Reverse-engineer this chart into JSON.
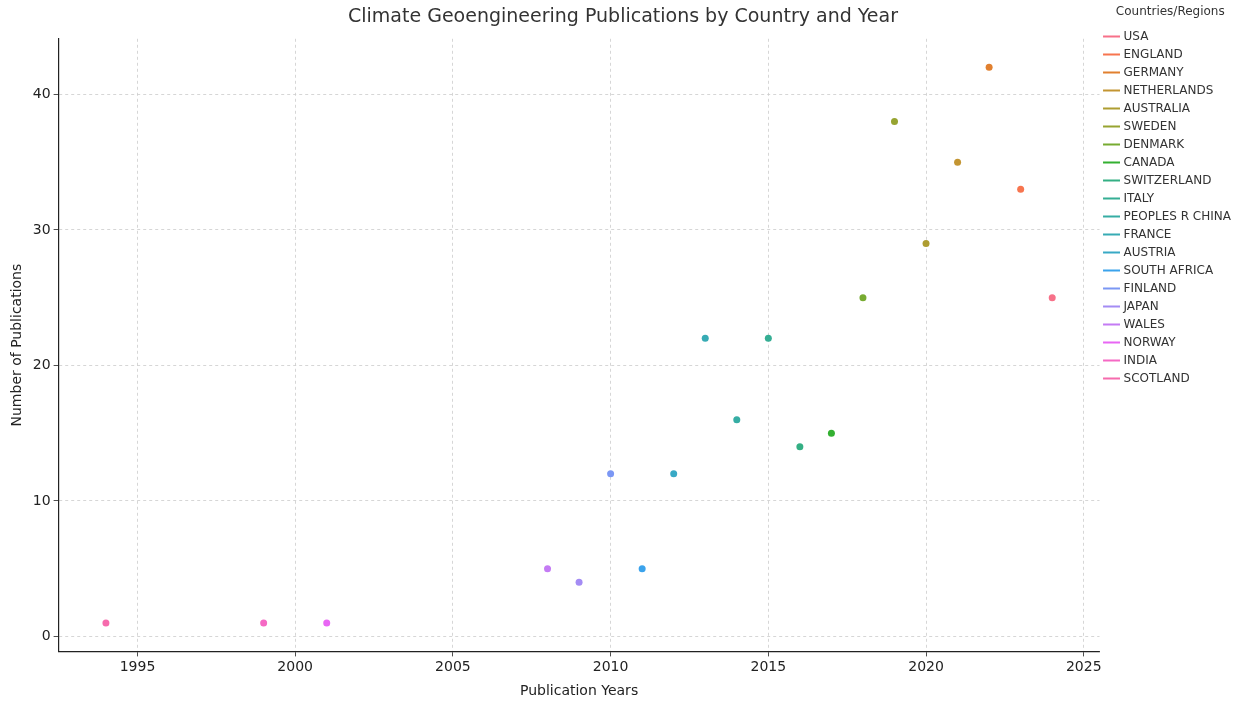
{
  "chart_data": {
    "type": "scatter",
    "title": "Climate Geoengineering Publications by Country and Year",
    "xlabel": "Publication Years",
    "ylabel": "Number of Publications",
    "legend_title": "Countries/Regions",
    "xlim": [
      1992.5,
      2025.5
    ],
    "xticks": [
      1995,
      2000,
      2005,
      2010,
      2015,
      2020,
      2025
    ],
    "ylim": [
      -1.1,
      44.1
    ],
    "yticks": [
      0,
      10,
      20,
      30,
      40
    ],
    "grid": true,
    "legend": "top right",
    "marker": "circle",
    "series": [
      {
        "name": "USA",
        "color": "#f77189",
        "x": [
          2024
        ],
        "values": [
          25
        ]
      },
      {
        "name": "ENGLAND",
        "color": "#f7754f",
        "x": [
          2023
        ],
        "values": [
          33
        ]
      },
      {
        "name": "GERMANY",
        "color": "#e1802f",
        "x": [
          2022
        ],
        "values": [
          42
        ]
      },
      {
        "name": "NETHERLANDS",
        "color": "#c39532",
        "x": [
          2021
        ],
        "values": [
          35
        ]
      },
      {
        "name": "AUSTRALIA",
        "color": "#ae9d31",
        "x": [
          2020
        ],
        "values": [
          29
        ]
      },
      {
        "name": "SWEDEN",
        "color": "#97a431",
        "x": [
          2019
        ],
        "values": [
          38
        ]
      },
      {
        "name": "DENMARK",
        "color": "#77ab31",
        "x": [
          2018
        ],
        "values": [
          25
        ]
      },
      {
        "name": "CANADA",
        "color": "#33b031",
        "x": [
          2017
        ],
        "values": [
          15
        ]
      },
      {
        "name": "SWITZERLAND",
        "color": "#34af84",
        "x": [
          2016
        ],
        "values": [
          14
        ]
      },
      {
        "name": "ITALY",
        "color": "#35ae94",
        "x": [
          2015
        ],
        "values": [
          22
        ]
      },
      {
        "name": "PEOPLES R CHINA",
        "color": "#36ada4",
        "x": [
          2014
        ],
        "values": [
          16
        ]
      },
      {
        "name": "FRANCE",
        "color": "#37abb4",
        "x": [
          2013
        ],
        "values": [
          22
        ]
      },
      {
        "name": "AUSTRIA",
        "color": "#38a9c5",
        "x": [
          2012
        ],
        "values": [
          12
        ]
      },
      {
        "name": "SOUTH AFRICA",
        "color": "#3ba3ec",
        "x": [
          2011
        ],
        "values": [
          5
        ]
      },
      {
        "name": "FINLAND",
        "color": "#7b97f4",
        "x": [
          2010
        ],
        "values": [
          12
        ]
      },
      {
        "name": "JAPAN",
        "color": "#a48cf4",
        "x": [
          2009
        ],
        "values": [
          4
        ]
      },
      {
        "name": "WALES",
        "color": "#c47bf4",
        "x": [
          2008
        ],
        "values": [
          5
        ]
      },
      {
        "name": "NORWAY",
        "color": "#e866f4",
        "x": [
          2001
        ],
        "values": [
          1
        ]
      },
      {
        "name": "INDIA",
        "color": "#f569c4",
        "x": [
          1999
        ],
        "values": [
          1
        ]
      },
      {
        "name": "SCOTLAND",
        "color": "#f66bad",
        "x": [
          1994
        ],
        "values": [
          1
        ]
      }
    ]
  }
}
